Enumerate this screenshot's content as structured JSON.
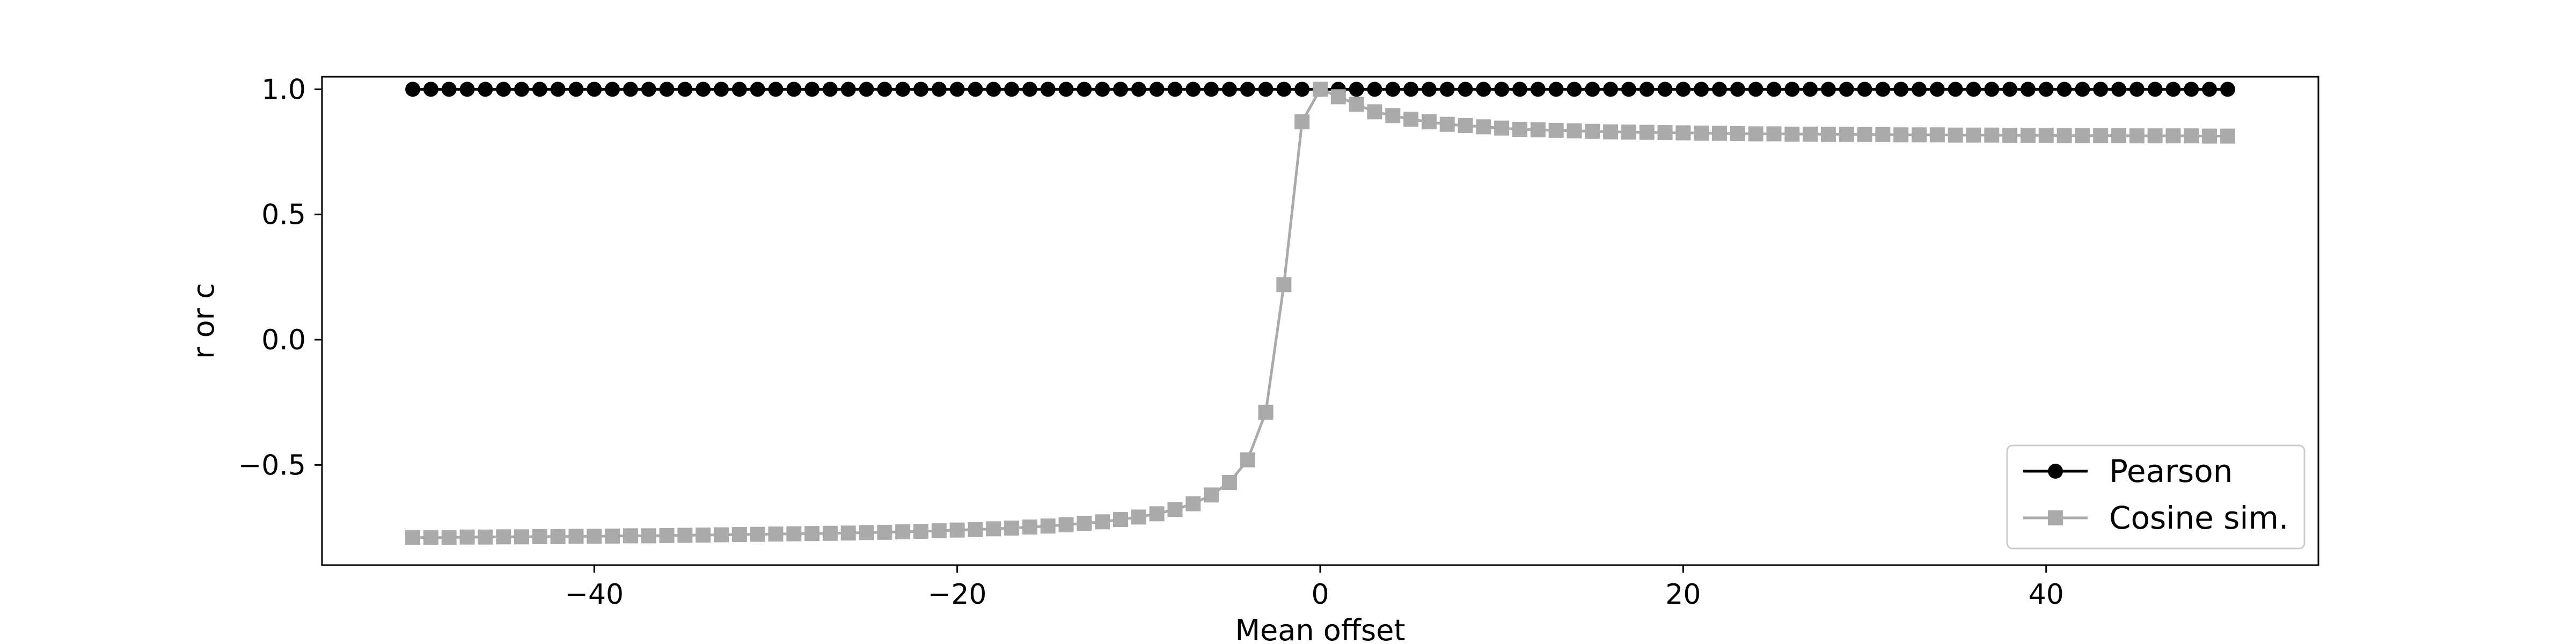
{
  "chart_data": {
    "type": "line",
    "title": "",
    "xlabel": "Mean offset",
    "ylabel": "r or c",
    "xlim": [
      -55,
      55
    ],
    "ylim": [
      -0.9,
      1.05
    ],
    "xticks": [
      -40,
      -20,
      0,
      20,
      40
    ],
    "xtick_labels": [
      "−40",
      "−20",
      "0",
      "20",
      "40"
    ],
    "yticks": [
      -0.5,
      0.0,
      0.5,
      1.0
    ],
    "ytick_labels": [
      "−0.5",
      "0.0",
      "0.5",
      "1.0"
    ],
    "grid": false,
    "legend_position": "lower-right",
    "x_range": {
      "start": -50,
      "stop": 50,
      "step": 1
    },
    "series": [
      {
        "name": "Pearson",
        "color": "#000000",
        "marker": "circle",
        "values": [
          1.0,
          1.0,
          1.0,
          1.0,
          1.0,
          1.0,
          1.0,
          1.0,
          1.0,
          1.0,
          1.0,
          1.0,
          1.0,
          1.0,
          1.0,
          1.0,
          1.0,
          1.0,
          1.0,
          1.0,
          1.0,
          1.0,
          1.0,
          1.0,
          1.0,
          1.0,
          1.0,
          1.0,
          1.0,
          1.0,
          1.0,
          1.0,
          1.0,
          1.0,
          1.0,
          1.0,
          1.0,
          1.0,
          1.0,
          1.0,
          1.0,
          1.0,
          1.0,
          1.0,
          1.0,
          1.0,
          1.0,
          1.0,
          1.0,
          1.0,
          1.0,
          1.0,
          1.0,
          1.0,
          1.0,
          1.0,
          1.0,
          1.0,
          1.0,
          1.0,
          1.0,
          1.0,
          1.0,
          1.0,
          1.0,
          1.0,
          1.0,
          1.0,
          1.0,
          1.0,
          1.0,
          1.0,
          1.0,
          1.0,
          1.0,
          1.0,
          1.0,
          1.0,
          1.0,
          1.0,
          1.0,
          1.0,
          1.0,
          1.0,
          1.0,
          1.0,
          1.0,
          1.0,
          1.0,
          1.0,
          1.0,
          1.0,
          1.0,
          1.0,
          1.0,
          1.0,
          1.0,
          1.0,
          1.0,
          1.0,
          1.0
        ]
      },
      {
        "name": "Cosine sim.",
        "color": "#aaaaaa",
        "marker": "square",
        "values": [
          -0.79,
          -0.79,
          -0.79,
          -0.788,
          -0.788,
          -0.787,
          -0.787,
          -0.786,
          -0.786,
          -0.785,
          -0.785,
          -0.784,
          -0.783,
          -0.783,
          -0.782,
          -0.781,
          -0.78,
          -0.779,
          -0.778,
          -0.777,
          -0.776,
          -0.775,
          -0.774,
          -0.773,
          -0.772,
          -0.77,
          -0.769,
          -0.767,
          -0.765,
          -0.763,
          -0.76,
          -0.758,
          -0.755,
          -0.752,
          -0.748,
          -0.744,
          -0.739,
          -0.733,
          -0.727,
          -0.718,
          -0.708,
          -0.695,
          -0.678,
          -0.655,
          -0.62,
          -0.57,
          -0.48,
          -0.29,
          0.22,
          0.87,
          1.0,
          0.97,
          0.94,
          0.91,
          0.895,
          0.88,
          0.87,
          0.86,
          0.855,
          0.85,
          0.845,
          0.84,
          0.838,
          0.836,
          0.834,
          0.832,
          0.83,
          0.829,
          0.828,
          0.827,
          0.826,
          0.825,
          0.824,
          0.823,
          0.822,
          0.822,
          0.821,
          0.821,
          0.82,
          0.82,
          0.819,
          0.819,
          0.818,
          0.818,
          0.818,
          0.817,
          0.817,
          0.817,
          0.816,
          0.816,
          0.816,
          0.815,
          0.815,
          0.815,
          0.815,
          0.814,
          0.814,
          0.814,
          0.814,
          0.813,
          0.813
        ]
      }
    ]
  }
}
